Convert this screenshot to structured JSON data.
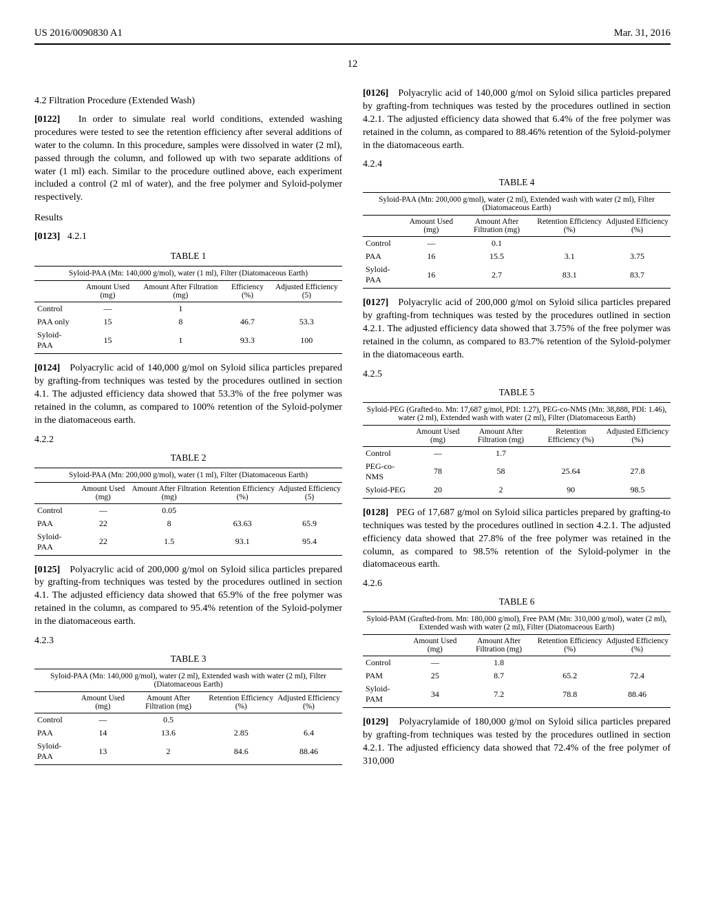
{
  "header": {
    "left": "US 2016/0090830 A1",
    "right": "Mar. 31, 2016"
  },
  "page_number": "12",
  "left_col": {
    "sec_heading": "4.2 Filtration Procedure (Extended Wash)",
    "p0122_num": "[0122]",
    "p0122": "In order to simulate real world conditions, extended washing procedures were tested to see the retention efficiency after several additions of water to the column. In this procedure, samples were dissolved in water (2 ml), passed through the column, and followed up with two separate additions of water (1 ml) each. Similar to the procedure outlined above, each experiment included a control (2 ml of water), and the free polymer and Syloid-polymer respectively.",
    "results_heading": "Results",
    "p0123_num": "[0123]",
    "p0123_sec": "4.2.1",
    "table1": {
      "label": "TABLE 1",
      "caption": "Syloid-PAA (Mn: 140,000 g/mol), water (1 ml), Filter (Diatomaceous Earth)",
      "headers": [
        "",
        "Amount Used (mg)",
        "Amount After Filtration (mg)",
        "Efficiency (%)",
        "Adjusted Efficiency (5)"
      ],
      "rows": [
        [
          "Control",
          "—",
          "1",
          "",
          ""
        ],
        [
          "PAA only",
          "15",
          "8",
          "46.7",
          "53.3"
        ],
        [
          "Syloid-PAA",
          "15",
          "1",
          "93.3",
          "100"
        ]
      ]
    },
    "p0124_num": "[0124]",
    "p0124": "Polyacrylic acid of 140,000 g/mol on Syloid silica particles prepared by grafting-from techniques was tested by the procedures outlined in section 4.1. The adjusted efficiency data showed that 53.3% of the free polymer was retained in the column, as compared to 100% retention of the Syloid-polymer in the diatomaceous earth.",
    "sec422": "4.2.2",
    "table2": {
      "label": "TABLE 2",
      "caption": "Syloid-PAA (Mn: 200,000 g/mol), water (1 ml), Filter (Diatomaceous Earth)",
      "headers": [
        "",
        "Amount Used (mg)",
        "Amount After Filtration (mg)",
        "Retention Efficiency (%)",
        "Adjusted Efficiency (5)"
      ],
      "rows": [
        [
          "Control",
          "—",
          "0.05",
          "",
          ""
        ],
        [
          "PAA",
          "22",
          "8",
          "63.63",
          "65.9"
        ],
        [
          "Syloid-PAA",
          "22",
          "1.5",
          "93.1",
          "95.4"
        ]
      ]
    },
    "p0125_num": "[0125]",
    "p0125": "Polyacrylic acid of 200,000 g/mol on Syloid silica particles prepared by grafting-from techniques was tested by the procedures outlined in section 4.1. The adjusted efficiency data showed that 65.9% of the free polymer was retained in the column, as compared to 95.4% retention of the Syloid-polymer in the diatomaceous earth.",
    "sec423": "4.2.3",
    "table3": {
      "label": "TABLE 3",
      "caption": "Syloid-PAA (Mn: 140,000 g/mol), water (2 ml), Extended wash with water (2 ml), Filter (Diatomaceous Earth)",
      "headers": [
        "",
        "Amount Used (mg)",
        "Amount After Filtration (mg)",
        "Retention Efficiency (%)",
        "Adjusted Efficiency (%)"
      ],
      "rows": [
        [
          "Control",
          "—",
          "0.5",
          "",
          ""
        ],
        [
          "PAA",
          "14",
          "13.6",
          "2.85",
          "6.4"
        ],
        [
          "Syloid-PAA",
          "13",
          "2",
          "84.6",
          "88.46"
        ]
      ]
    }
  },
  "right_col": {
    "p0126_num": "[0126]",
    "p0126": "Polyacrylic acid of 140,000 g/mol on Syloid silica particles prepared by grafting-from techniques was tested by the procedures outlined in section 4.2.1. The adjusted efficiency data showed that 6.4% of the free polymer was retained in the column, as compared to 88.46% retention of the Syloid-polymer in the diatomaceous earth.",
    "sec424": "4.2.4",
    "table4": {
      "label": "TABLE 4",
      "caption": "Syloid-PAA (Mn: 200,000 g/mol), water (2 ml), Extended wash with water (2 ml), Filter (Diatomaceous Earth)",
      "headers": [
        "",
        "Amount Used (mg)",
        "Amount After Filtration (mg)",
        "Retention Efficiency (%)",
        "Adjusted Efficiency (%)"
      ],
      "rows": [
        [
          "Control",
          "—",
          "0.1",
          "",
          ""
        ],
        [
          "PAA",
          "16",
          "15.5",
          "3.1",
          "3.75"
        ],
        [
          "Syloid-PAA",
          "16",
          "2.7",
          "83.1",
          "83.7"
        ]
      ]
    },
    "p0127_num": "[0127]",
    "p0127": "Polyacrylic acid of 200,000 g/mol on Syloid silica particles prepared by grafting-from techniques was tested by the procedures outlined in section 4.2.1. The adjusted efficiency data showed that 3.75% of the free polymer was retained in the column, as compared to 83.7% retention of the Syloid-polymer in the diatomaceous earth.",
    "sec425": "4.2.5",
    "table5": {
      "label": "TABLE 5",
      "caption": "Syloid-PEG (Grafted-to. Mn: 17,687 g/mol, PDI: 1.27), PEG-co-NMS (Mn: 38,888, PDI: 1.46), water (2 ml), Extended wash with water (2 ml), Filter (Diatomaceous Earth)",
      "headers": [
        "",
        "Amount Used (mg)",
        "Amount After Filtration (mg)",
        "Retention Efficiency (%)",
        "Adjusted Efficiency (%)"
      ],
      "rows": [
        [
          "Control",
          "—",
          "1.7",
          "",
          ""
        ],
        [
          "PEG-co-NMS",
          "78",
          "58",
          "25.64",
          "27.8"
        ],
        [
          "Syloid-PEG",
          "20",
          "2",
          "90",
          "98.5"
        ]
      ]
    },
    "p0128_num": "[0128]",
    "p0128": "PEG of 17,687 g/mol on Syloid silica particles prepared by grafting-to techniques was tested by the procedures outlined in section 4.2.1. The adjusted efficiency data showed that 27.8% of the free polymer was retained in the column, as compared to 98.5% retention of the Syloid-polymer in the diatomaceous earth.",
    "sec426": "4.2.6",
    "table6": {
      "label": "TABLE 6",
      "caption": "Syloid-PAM (Grafted-from. Mn: 180,000 g/mol), Free PAM (Mn: 310,000 g/mol), water (2 ml), Extended wash with water (2 ml), Filter (Diatomaceous Earth)",
      "headers": [
        "",
        "Amount Used (mg)",
        "Amount After Filtration (mg)",
        "Retention Efficiency (%)",
        "Adjusted Efficiency (%)"
      ],
      "rows": [
        [
          "Control",
          "—",
          "1.8",
          "",
          ""
        ],
        [
          "PAM",
          "25",
          "8.7",
          "65.2",
          "72.4"
        ],
        [
          "Syloid-PAM",
          "34",
          "7.2",
          "78.8",
          "88.46"
        ]
      ]
    },
    "p0129_num": "[0129]",
    "p0129": "Polyacrylamide of 180,000 g/mol on Syloid silica particles prepared by grafting-from techniques was tested by the procedures outlined in section 4.2.1. The adjusted efficiency data showed that 72.4% of the free polymer of 310,000"
  }
}
